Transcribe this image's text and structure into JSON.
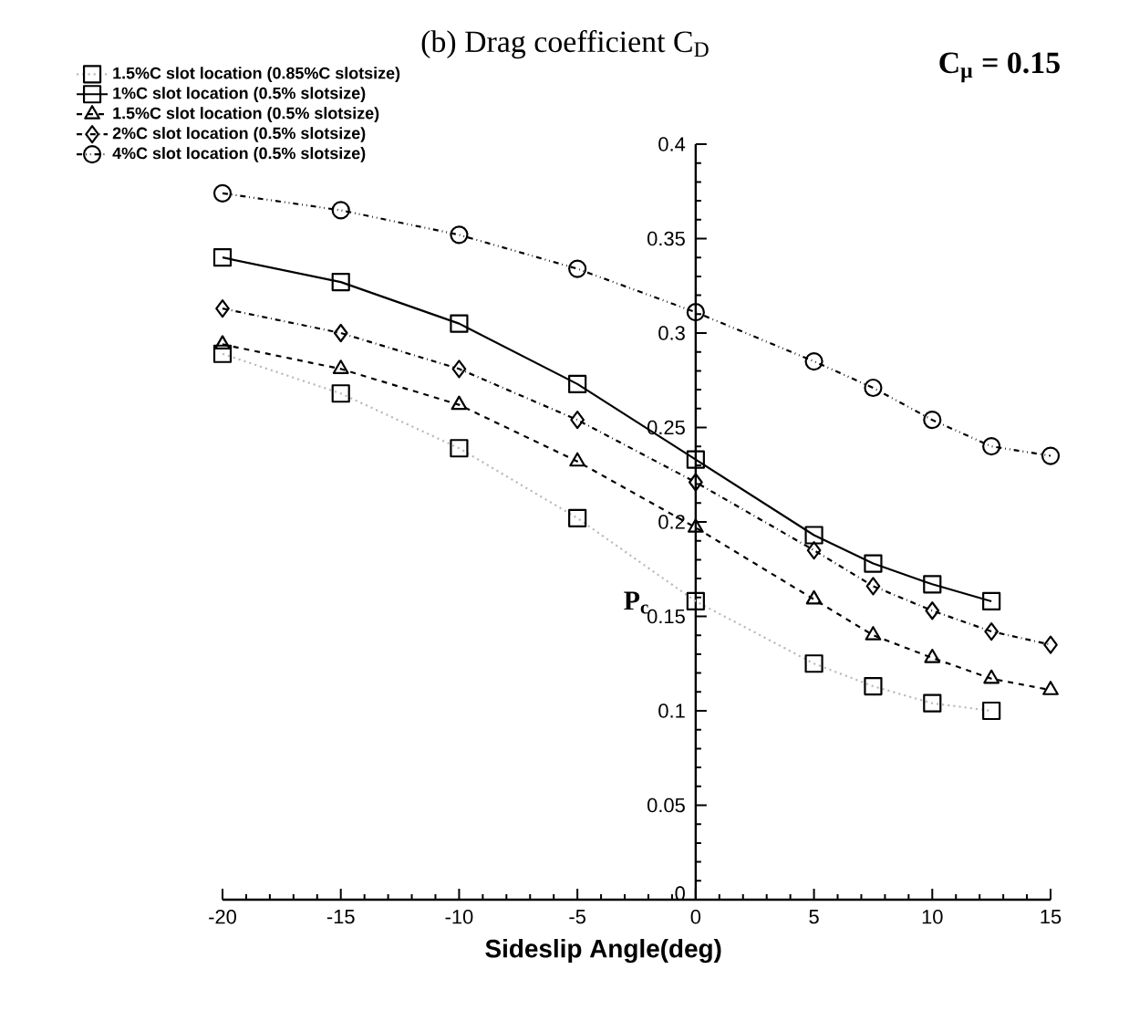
{
  "chart_data": {
    "type": "line",
    "title": "(b) Drag coefficient C$_{D}$",
    "xlabel": "Sideslip Angle(deg)",
    "ylabel": "P$_{c}$",
    "annotations": [
      "C$_{μ}$ = 0.15"
    ],
    "xlim": [
      -20,
      15
    ],
    "ylim": [
      0,
      0.4
    ],
    "xticks": [
      -20,
      -15,
      -10,
      -5,
      0,
      5,
      10,
      15
    ],
    "yticks": [
      0,
      0.05,
      0.1,
      0.15,
      0.2,
      0.25,
      0.3,
      0.35,
      0.4
    ],
    "grid": false,
    "legend": "top left",
    "series": [
      {
        "name": "1.5%C slot location (0.85%C slotsize)",
        "color": "#bbbbbb",
        "marker": "square",
        "line_style": "dotted",
        "x": [
          -20,
          -15,
          -10,
          -5,
          0,
          5,
          7.5,
          10,
          12.5
        ],
        "values": [
          0.289,
          0.268,
          0.239,
          0.202,
          0.158,
          0.125,
          0.113,
          0.104,
          0.1
        ]
      },
      {
        "name": "1%C slot location (0.5% slotsize)",
        "color": "#000000",
        "marker": "square",
        "line_style": "solid",
        "x": [
          -20,
          -15,
          -10,
          -5,
          0,
          5,
          7.5,
          10,
          12.5
        ],
        "values": [
          0.34,
          0.327,
          0.305,
          0.273,
          0.233,
          0.193,
          0.178,
          0.167,
          0.158
        ]
      },
      {
        "name": "1.5%C slot location (0.5% slotsize)",
        "color": "#000000",
        "marker": "triangle",
        "line_style": "dashed",
        "x": [
          -20,
          -15,
          -10,
          -5,
          0,
          5,
          7.5,
          10,
          12.5,
          15
        ],
        "values": [
          0.294,
          0.281,
          0.262,
          0.232,
          0.197,
          0.159,
          0.14,
          0.128,
          0.117,
          0.111
        ]
      },
      {
        "name": "2%C slot location (0.5% slotsize)",
        "color": "#000000",
        "marker": "diamond",
        "line_style": "dashdot",
        "x": [
          -20,
          -15,
          -10,
          -5,
          0,
          5,
          7.5,
          10,
          12.5,
          15
        ],
        "values": [
          0.313,
          0.3,
          0.281,
          0.254,
          0.221,
          0.185,
          0.166,
          0.153,
          0.142,
          0.135
        ]
      },
      {
        "name": "4%C slot location (0.5% slotsize)",
        "color": "#000000",
        "marker": "circle",
        "line_style": "dashdotdot",
        "x": [
          -20,
          -15,
          -10,
          -5,
          0,
          5,
          7.5,
          10,
          12.5,
          15
        ],
        "values": [
          0.374,
          0.365,
          0.352,
          0.334,
          0.311,
          0.285,
          0.271,
          0.254,
          0.24,
          0.235
        ]
      }
    ]
  }
}
